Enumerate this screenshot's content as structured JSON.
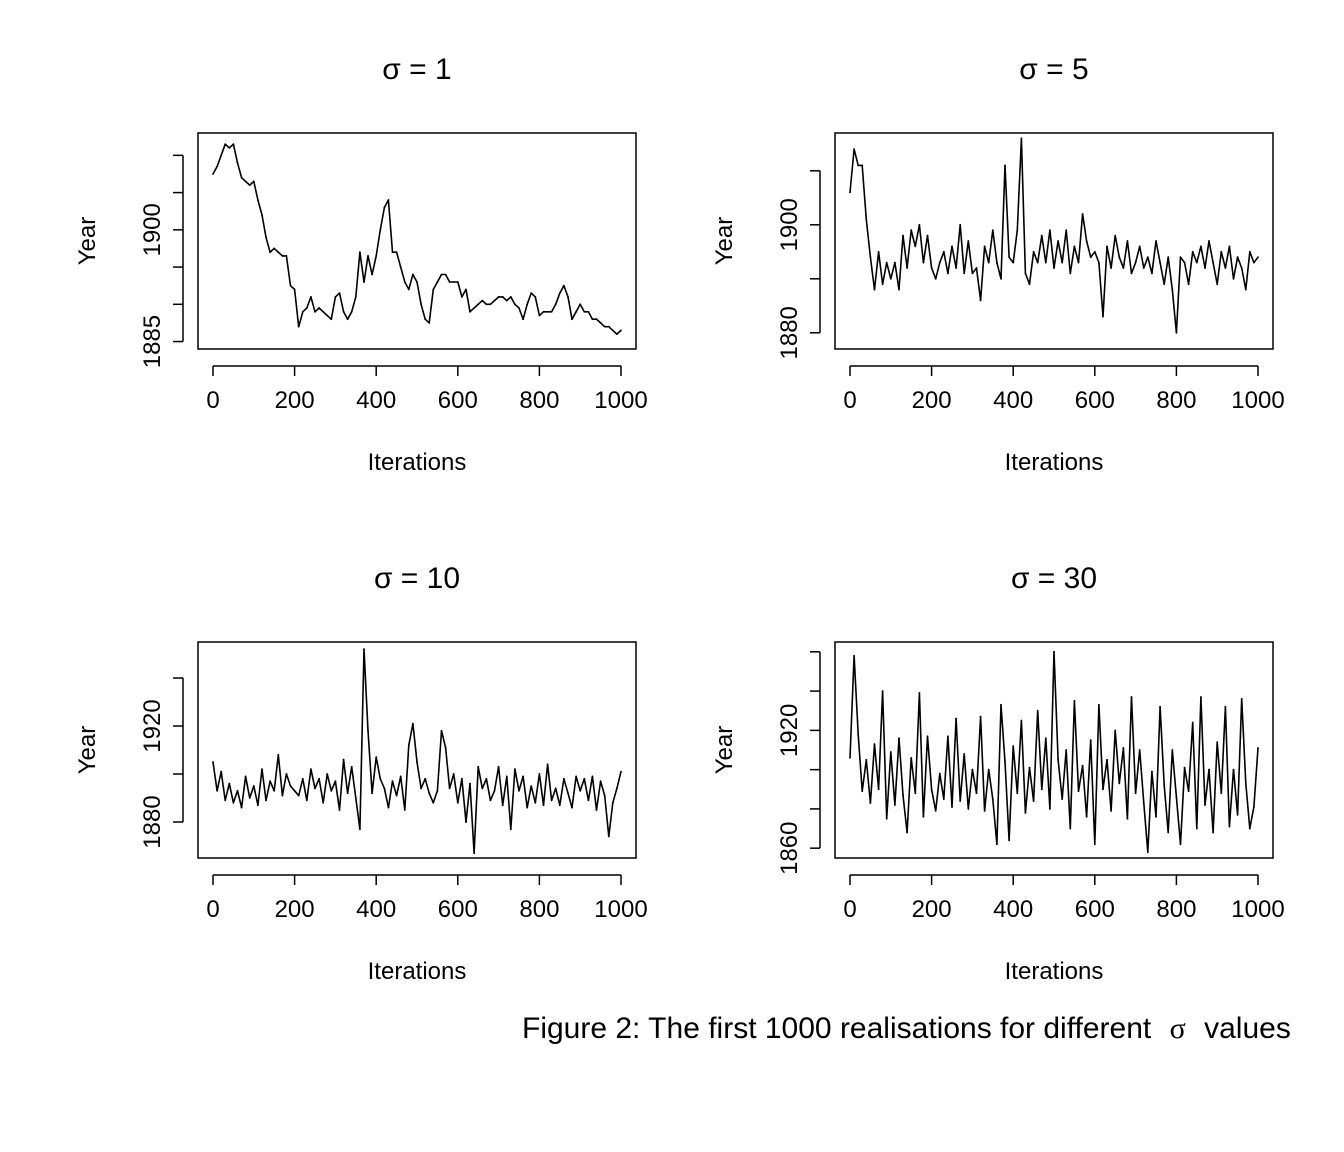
{
  "caption": {
    "prefix": "Figure 2: The first 1000 realisations for different",
    "symbol": "σ",
    "suffix": "values"
  },
  "chart_data": [
    {
      "type": "line",
      "title": "σ = 1",
      "xlabel": "Iterations",
      "ylabel": "Year",
      "xlim": [
        0,
        1000
      ],
      "ylim": [
        1884,
        1913
      ],
      "x_ticks": [
        "0",
        "200",
        "400",
        "600",
        "800",
        "1000"
      ],
      "y_ticks": [
        "1885",
        "1890",
        "1895",
        "1900",
        "1905",
        "1910"
      ],
      "y_tick_labels": [
        "1885",
        "",
        "",
        "1900",
        "",
        ""
      ],
      "series": [
        {
          "x": [
            0,
            10,
            20,
            30,
            40,
            50,
            60,
            70,
            80,
            90,
            100,
            110,
            120,
            130,
            140,
            150,
            160,
            170,
            180,
            190,
            200,
            210,
            220,
            230,
            240,
            250,
            260,
            270,
            280,
            290,
            300,
            310,
            320,
            330,
            340,
            350,
            360,
            370,
            380,
            390,
            400,
            410,
            420,
            430,
            440,
            450,
            460,
            470,
            480,
            490,
            500,
            510,
            520,
            530,
            540,
            550,
            560,
            570,
            580,
            590,
            600,
            610,
            620,
            630,
            640,
            650,
            660,
            670,
            680,
            690,
            700,
            710,
            720,
            730,
            740,
            750,
            760,
            770,
            780,
            790,
            800,
            810,
            820,
            830,
            840,
            850,
            860,
            870,
            880,
            890,
            900,
            910,
            920,
            930,
            940,
            950,
            960,
            970,
            980,
            990,
            1000
          ],
          "values": [
            1907.5,
            1908.5,
            1910,
            1911.5,
            1911,
            1911.5,
            1909,
            1907,
            1906.5,
            1906,
            1906.5,
            1904,
            1902,
            1899,
            1897,
            1897.5,
            1897,
            1896.5,
            1896.5,
            1892.5,
            1892,
            1887,
            1889,
            1889.5,
            1891,
            1889,
            1889.5,
            1889,
            1888.5,
            1888,
            1891,
            1891.5,
            1889,
            1888,
            1889,
            1891,
            1897,
            1893,
            1896.5,
            1894,
            1896.5,
            1900,
            1903,
            1904,
            1897,
            1897,
            1895,
            1893,
            1892,
            1894,
            1893,
            1890,
            1888,
            1887.5,
            1892,
            1893,
            1894,
            1894,
            1893,
            1893,
            1893,
            1891,
            1892,
            1889,
            1889.5,
            1890,
            1890.5,
            1890,
            1890,
            1890.5,
            1891,
            1891,
            1890.5,
            1891,
            1890,
            1889.5,
            1888,
            1890,
            1891.5,
            1891,
            1888.5,
            1889,
            1889,
            1889,
            1890,
            1891.5,
            1892.5,
            1891,
            1888,
            1889,
            1890,
            1889,
            1889,
            1888,
            1888,
            1887.5,
            1887,
            1887,
            1886.5,
            1886,
            1886.5
          ]
        }
      ]
    },
    {
      "type": "line",
      "title": "σ = 5",
      "xlabel": "Iterations",
      "ylabel": "Year",
      "xlim": [
        0,
        1000
      ],
      "ylim": [
        1877,
        1917
      ],
      "x_ticks": [
        "0",
        "200",
        "400",
        "600",
        "800",
        "1000"
      ],
      "y_ticks": [
        "1880",
        "1890",
        "1900",
        "1910"
      ],
      "y_tick_labels": [
        "1880",
        "",
        "1900",
        ""
      ],
      "series": [
        {
          "x": [
            0,
            10,
            20,
            30,
            40,
            50,
            60,
            70,
            80,
            90,
            100,
            110,
            120,
            130,
            140,
            150,
            160,
            170,
            180,
            190,
            200,
            210,
            220,
            230,
            240,
            250,
            260,
            270,
            280,
            290,
            300,
            310,
            320,
            330,
            340,
            350,
            360,
            370,
            380,
            390,
            400,
            410,
            420,
            430,
            440,
            450,
            460,
            470,
            480,
            490,
            500,
            510,
            520,
            530,
            540,
            550,
            560,
            570,
            580,
            590,
            600,
            610,
            620,
            630,
            640,
            650,
            660,
            670,
            680,
            690,
            700,
            710,
            720,
            730,
            740,
            750,
            760,
            770,
            780,
            790,
            800,
            810,
            820,
            830,
            840,
            850,
            860,
            870,
            880,
            890,
            900,
            910,
            920,
            930,
            940,
            950,
            960,
            970,
            980,
            990,
            1000
          ],
          "values": [
            1906,
            1914,
            1911,
            1911,
            1901,
            1894,
            1888,
            1895,
            1889,
            1893,
            1890,
            1893,
            1888,
            1898,
            1892,
            1899,
            1896,
            1900,
            1893,
            1898,
            1892,
            1890,
            1893,
            1895,
            1891,
            1896,
            1892,
            1900,
            1891,
            1897,
            1891,
            1892,
            1886,
            1896,
            1893,
            1899,
            1893,
            1890,
            1911,
            1894,
            1893,
            1899,
            1916,
            1891,
            1889,
            1895,
            1893,
            1898,
            1893,
            1899,
            1892,
            1897,
            1893,
            1899,
            1891,
            1896,
            1893,
            1902,
            1897,
            1894,
            1895,
            1893,
            1883,
            1896,
            1892,
            1898,
            1894,
            1892,
            1897,
            1891,
            1893,
            1896,
            1892,
            1894,
            1891,
            1897,
            1893,
            1889,
            1894,
            1888,
            1880,
            1894,
            1893,
            1889,
            1895,
            1893,
            1896,
            1892,
            1897,
            1893,
            1889,
            1895,
            1892,
            1896,
            1890,
            1894,
            1892,
            1888,
            1895,
            1893,
            1894
          ]
        }
      ]
    },
    {
      "type": "line",
      "title": "σ = 10",
      "xlabel": "Iterations",
      "ylabel": "Year",
      "xlim": [
        0,
        1000
      ],
      "ylim": [
        1865,
        1955
      ],
      "x_ticks": [
        "0",
        "200",
        "400",
        "600",
        "800",
        "1000"
      ],
      "y_ticks": [
        "1880",
        "1900",
        "1920",
        "1940"
      ],
      "y_tick_labels": [
        "1880",
        "",
        "1920",
        ""
      ],
      "series": [
        {
          "x": [
            0,
            10,
            20,
            30,
            40,
            50,
            60,
            70,
            80,
            90,
            100,
            110,
            120,
            130,
            140,
            150,
            160,
            170,
            180,
            190,
            200,
            210,
            220,
            230,
            240,
            250,
            260,
            270,
            280,
            290,
            300,
            310,
            320,
            330,
            340,
            350,
            360,
            370,
            380,
            390,
            400,
            410,
            420,
            430,
            440,
            450,
            460,
            470,
            480,
            490,
            500,
            510,
            520,
            530,
            540,
            550,
            560,
            570,
            580,
            590,
            600,
            610,
            620,
            630,
            640,
            650,
            660,
            670,
            680,
            690,
            700,
            710,
            720,
            730,
            740,
            750,
            760,
            770,
            780,
            790,
            800,
            810,
            820,
            830,
            840,
            850,
            860,
            870,
            880,
            890,
            900,
            910,
            920,
            930,
            940,
            950,
            960,
            970,
            980,
            990,
            1000
          ],
          "values": [
            1905,
            1893,
            1901,
            1889,
            1896,
            1888,
            1893,
            1886,
            1899,
            1890,
            1895,
            1887,
            1902,
            1889,
            1897,
            1893,
            1908,
            1891,
            1900,
            1895,
            1893,
            1891,
            1898,
            1889,
            1902,
            1894,
            1898,
            1888,
            1900,
            1893,
            1897,
            1885,
            1906,
            1892,
            1903,
            1890,
            1877,
            1952,
            1918,
            1892,
            1907,
            1898,
            1894,
            1886,
            1897,
            1891,
            1899,
            1885,
            1912,
            1921,
            1905,
            1894,
            1898,
            1892,
            1888,
            1893,
            1918,
            1911,
            1894,
            1900,
            1888,
            1898,
            1880,
            1896,
            1867,
            1903,
            1894,
            1898,
            1889,
            1893,
            1903,
            1887,
            1899,
            1877,
            1902,
            1893,
            1899,
            1886,
            1895,
            1888,
            1900,
            1887,
            1904,
            1889,
            1894,
            1887,
            1898,
            1892,
            1886,
            1899,
            1893,
            1898,
            1889,
            1899,
            1885,
            1897,
            1891,
            1874,
            1888,
            1894,
            1901
          ]
        }
      ]
    },
    {
      "type": "line",
      "title": "σ = 30",
      "xlabel": "Iterations",
      "ylabel": "Year",
      "xlim": [
        0,
        1000
      ],
      "ylim": [
        1855,
        1965
      ],
      "x_ticks": [
        "0",
        "200",
        "400",
        "600",
        "800",
        "1000"
      ],
      "y_ticks": [
        "1860",
        "1880",
        "1900",
        "1920",
        "1940",
        "1960"
      ],
      "y_tick_labels": [
        "1860",
        "",
        "",
        "1920",
        "",
        ""
      ],
      "series": [
        {
          "x": [
            0,
            10,
            20,
            30,
            40,
            50,
            60,
            70,
            80,
            90,
            100,
            110,
            120,
            130,
            140,
            150,
            160,
            170,
            180,
            190,
            200,
            210,
            220,
            230,
            240,
            250,
            260,
            270,
            280,
            290,
            300,
            310,
            320,
            330,
            340,
            350,
            360,
            370,
            380,
            390,
            400,
            410,
            420,
            430,
            440,
            450,
            460,
            470,
            480,
            490,
            500,
            510,
            520,
            530,
            540,
            550,
            560,
            570,
            580,
            590,
            600,
            610,
            620,
            630,
            640,
            650,
            660,
            670,
            680,
            690,
            700,
            710,
            720,
            730,
            740,
            750,
            760,
            770,
            780,
            790,
            800,
            810,
            820,
            830,
            840,
            850,
            860,
            870,
            880,
            890,
            900,
            910,
            920,
            930,
            940,
            950,
            960,
            970,
            980,
            990,
            1000
          ],
          "values": [
            1906,
            1958,
            1918,
            1889,
            1905,
            1883,
            1913,
            1890,
            1940,
            1875,
            1909,
            1882,
            1916,
            1887,
            1868,
            1906,
            1888,
            1939,
            1876,
            1917,
            1890,
            1879,
            1898,
            1885,
            1917,
            1881,
            1926,
            1884,
            1908,
            1880,
            1900,
            1888,
            1927,
            1879,
            1900,
            1885,
            1862,
            1933,
            1904,
            1864,
            1912,
            1888,
            1925,
            1878,
            1901,
            1884,
            1930,
            1890,
            1916,
            1880,
            1960,
            1905,
            1885,
            1910,
            1870,
            1935,
            1889,
            1902,
            1876,
            1915,
            1862,
            1933,
            1890,
            1905,
            1879,
            1920,
            1893,
            1911,
            1875,
            1937,
            1888,
            1910,
            1883,
            1858,
            1899,
            1876,
            1932,
            1892,
            1868,
            1910,
            1886,
            1862,
            1901,
            1889,
            1924,
            1870,
            1937,
            1882,
            1900,
            1868,
            1914,
            1888,
            1932,
            1871,
            1900,
            1877,
            1936,
            1893,
            1870,
            1881,
            1911
          ]
        }
      ]
    }
  ]
}
